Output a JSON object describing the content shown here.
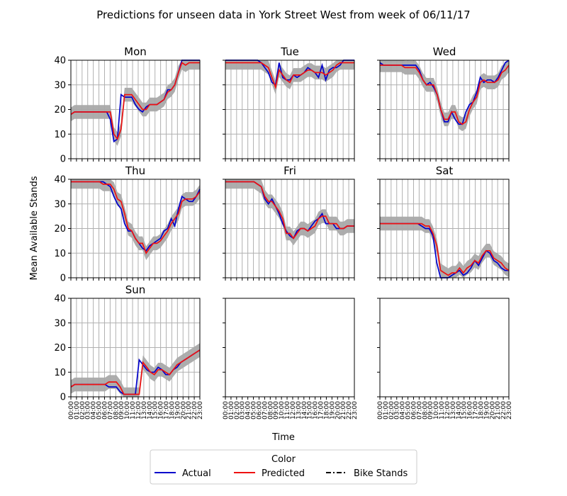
{
  "chart_data": {
    "type": "line",
    "title": "Predictions for unseen data in York Street West from week of 06/11/17",
    "xlabel": "Time",
    "ylabel": "Mean Available Stands",
    "ylim": [
      0,
      40
    ],
    "yticks": [
      "0",
      "10",
      "20",
      "30",
      "40"
    ],
    "x": [
      "00:00",
      "01:00",
      "02:00",
      "03:00",
      "04:00",
      "05:00",
      "06:00",
      "07:00",
      "08:00",
      "09:00",
      "10:00",
      "11:00",
      "12:00",
      "13:00",
      "14:00",
      "15:00",
      "16:00",
      "17:00",
      "18:00",
      "19:00",
      "20:00",
      "21:00",
      "22:00",
      "23:00"
    ],
    "grid": true,
    "legend": {
      "title": "Color",
      "placement": "bottom-center",
      "entries": [
        {
          "label": "Actual",
          "color": "#0000cc",
          "style": "solid"
        },
        {
          "label": "Predicted",
          "color": "#ee1111",
          "style": "solid"
        },
        {
          "label": "Bike Stands",
          "color": "#000000",
          "style": "dashdot"
        }
      ]
    },
    "band_color": "#a9a9a9",
    "panels": [
      {
        "name": "Mon",
        "actual": [
          18,
          19,
          19,
          19,
          19,
          19,
          19,
          19,
          19,
          19,
          19,
          16,
          7,
          8,
          26,
          25,
          25,
          25,
          22,
          20,
          19,
          21,
          22,
          22,
          22,
          23,
          24,
          28,
          28,
          30,
          35,
          40,
          40,
          40,
          40,
          40,
          40
        ],
        "predicted": [
          18,
          19,
          19,
          19,
          19,
          19,
          19,
          19,
          19,
          19,
          19,
          19,
          10,
          8,
          12,
          26,
          26,
          26,
          24,
          22,
          20,
          20,
          22,
          22,
          22,
          23,
          24,
          27,
          28,
          30,
          35,
          39,
          38,
          39,
          39,
          39,
          39
        ]
      },
      {
        "name": "Tue",
        "actual": [
          40,
          40,
          40,
          40,
          40,
          40,
          40,
          40,
          40,
          40,
          39,
          37,
          35,
          31,
          30,
          39,
          33,
          32,
          32,
          34,
          33,
          34,
          35,
          37,
          36,
          35,
          33,
          38,
          32,
          36,
          37,
          37,
          38,
          40,
          40,
          40,
          40
        ],
        "predicted": [
          39,
          39,
          39,
          39,
          39,
          39,
          39,
          39,
          39,
          39,
          39,
          38,
          37,
          33,
          29,
          36,
          34,
          32,
          31,
          34,
          34,
          34,
          35,
          36,
          36,
          35,
          35,
          35,
          34,
          35,
          36,
          38,
          39,
          39,
          39,
          39,
          39
        ]
      },
      {
        "name": "Wed",
        "actual": [
          39,
          38,
          38,
          38,
          38,
          38,
          38,
          38,
          38,
          38,
          38,
          36,
          32,
          30,
          31,
          29,
          26,
          20,
          15,
          15,
          19,
          16,
          14,
          14,
          19,
          22,
          23,
          27,
          33,
          31,
          32,
          32,
          31,
          33,
          36,
          39,
          41
        ],
        "predicted": [
          38,
          38,
          38,
          38,
          38,
          38,
          38,
          37,
          37,
          37,
          37,
          35,
          32,
          30,
          30,
          30,
          26,
          20,
          16,
          16,
          19,
          19,
          15,
          14,
          15,
          20,
          23,
          25,
          31,
          32,
          31,
          31,
          31,
          32,
          35,
          36,
          38
        ]
      },
      {
        "name": "Thu",
        "actual": [
          39,
          39,
          39,
          39,
          39,
          39,
          39,
          39,
          39,
          39,
          38,
          37,
          33,
          30,
          28,
          22,
          19,
          19,
          16,
          14,
          12,
          11,
          13,
          14,
          15,
          16,
          19,
          20,
          24,
          21,
          28,
          33,
          32,
          31,
          31,
          33,
          36
        ],
        "predicted": [
          39,
          39,
          39,
          39,
          39,
          39,
          39,
          39,
          39,
          38,
          38,
          38,
          36,
          32,
          31,
          26,
          20,
          19,
          16,
          14,
          14,
          10,
          12,
          14,
          14,
          15,
          17,
          19,
          22,
          24,
          26,
          31,
          32,
          32,
          32,
          33,
          35
        ]
      },
      {
        "name": "Fri",
        "actual": [
          39,
          39,
          39,
          39,
          39,
          39,
          39,
          39,
          39,
          38,
          37,
          32,
          30,
          32,
          29,
          26,
          22,
          19,
          17,
          16,
          19,
          20,
          20,
          19,
          21,
          23,
          24,
          26,
          22,
          22,
          22,
          20,
          20,
          20,
          21,
          21,
          21
        ],
        "predicted": [
          39,
          39,
          39,
          39,
          39,
          39,
          39,
          39,
          39,
          38,
          37,
          33,
          31,
          31,
          29,
          27,
          24,
          18,
          18,
          16,
          18,
          20,
          20,
          19,
          20,
          21,
          24,
          25,
          25,
          22,
          22,
          22,
          20,
          20,
          21,
          21,
          21
        ]
      },
      {
        "name": "Sat",
        "actual": [
          22,
          22,
          22,
          22,
          22,
          22,
          22,
          22,
          22,
          22,
          22,
          21,
          20,
          20,
          17,
          6,
          0,
          0,
          0,
          1,
          2,
          3,
          1,
          2,
          4,
          7,
          5,
          8,
          11,
          10,
          7,
          6,
          4,
          3,
          3
        ],
        "predicted": [
          22,
          22,
          22,
          22,
          22,
          22,
          22,
          22,
          22,
          22,
          22,
          22,
          21,
          21,
          18,
          13,
          3,
          2,
          1,
          2,
          2,
          4,
          2,
          4,
          5,
          7,
          6,
          9,
          11,
          11,
          8,
          7,
          6,
          4,
          3
        ]
      },
      {
        "name": "Sun",
        "actual": [
          4,
          5,
          5,
          5,
          5,
          5,
          5,
          5,
          5,
          5,
          4,
          4,
          4,
          2,
          1,
          1,
          1,
          1,
          15,
          13,
          11,
          10,
          10,
          12,
          11,
          9,
          9,
          11,
          12,
          14,
          15,
          16,
          17,
          18,
          19
        ],
        "predicted": [
          4,
          5,
          5,
          5,
          5,
          5,
          5,
          5,
          5,
          5,
          6,
          6,
          6,
          4,
          1,
          1,
          1,
          1,
          1,
          14,
          12,
          10,
          9,
          11,
          11,
          10,
          9,
          11,
          13,
          14,
          15,
          16,
          17,
          18,
          19
        ]
      }
    ]
  }
}
